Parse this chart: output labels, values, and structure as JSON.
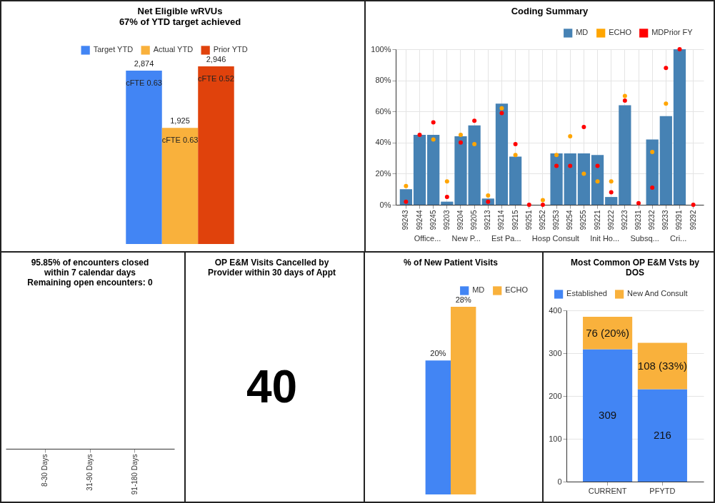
{
  "chart_data": [
    {
      "type": "bar",
      "title": "Net Eligible wRVUs",
      "subtitle": "67% of YTD target achieved",
      "categories": [
        null
      ],
      "series": [
        {
          "name": "Target YTD",
          "color": "#4285f4",
          "values": [
            2874
          ],
          "value_labels": [
            "2,874"
          ]
        },
        {
          "name": "Actual YTD",
          "color": "#f9b13c",
          "values": [
            1925
          ],
          "value_labels": [
            "1,925"
          ]
        },
        {
          "name": "Prior YTD",
          "color": "#e0420c",
          "values": [
            2946
          ],
          "value_labels": [
            "2,946"
          ]
        }
      ],
      "annotations": [
        "cFTE 0.63",
        "cFTE 0.63",
        "cFTE 0.52"
      ],
      "legend": "top",
      "tick_labels": false
    },
    {
      "type": "bar",
      "title": "Coding Summary",
      "categories": [
        "99243",
        "99244",
        "99245",
        "99203",
        "99204",
        "99205",
        "99213",
        "99214",
        "99215",
        "99251",
        "99252",
        "99253",
        "99254",
        "99255",
        "99221",
        "99222",
        "99223",
        "99231",
        "99232",
        "99233",
        "99291",
        "99292"
      ],
      "series": [
        {
          "name": "MD",
          "color": "#4682b4",
          "values": [
            10,
            45,
            45,
            2,
            44,
            51,
            4,
            65,
            31,
            0,
            0,
            33,
            33,
            33,
            32,
            5,
            64,
            0,
            42,
            57,
            100,
            0
          ]
        },
        {
          "name": "ECHO",
          "type": "scatter",
          "color": "#ffa500",
          "values": [
            12,
            null,
            42,
            15,
            45,
            39,
            6,
            62,
            32,
            null,
            3,
            32,
            44,
            20,
            15,
            15,
            70,
            null,
            34,
            65,
            null,
            null
          ]
        },
        {
          "name": "MDPrior FY",
          "type": "scatter",
          "color": "#ff0000",
          "values": [
            2,
            45,
            53,
            5,
            40,
            54,
            2,
            59,
            39,
            0,
            0,
            25,
            25,
            50,
            25,
            8,
            67,
            1,
            11,
            88,
            100,
            0
          ]
        }
      ],
      "ylim": [
        0,
        100
      ],
      "yticks": [
        {
          "value": 0,
          "label": "0%"
        },
        {
          "value": 20,
          "label": "20%"
        },
        {
          "value": 40,
          "label": "40%"
        },
        {
          "value": 60,
          "label": "60%"
        },
        {
          "value": 80,
          "label": "80%"
        },
        {
          "value": 100,
          "label": "100%"
        }
      ],
      "grid": true,
      "legend": "top right",
      "marker": "circle",
      "annotations": [
        "Office...",
        "New P...",
        "Est Pa...",
        "Hosp Consult",
        "Init Ho...",
        "Subsq...",
        "Cri..."
      ]
    },
    {
      "type": "other",
      "title": "95.85% of encounters closed within 7 calendar days",
      "subtitle": "Remaining open encounters: 0",
      "categories": [
        "8-30 Days",
        "31-90 Days",
        "91-180 Days"
      ]
    },
    {
      "type": "other",
      "title": "OP E&M Visits Cancelled by Provider within 30 days of Appt",
      "annotations": [
        "40"
      ]
    },
    {
      "type": "bar",
      "title": "% of New Patient Visits",
      "categories": [
        null
      ],
      "series": [
        {
          "name": "MD",
          "color": "#4285f4",
          "values": [
            20
          ],
          "value_labels": [
            "20%"
          ]
        },
        {
          "name": "ECHO",
          "color": "#f9b13c",
          "values": [
            28
          ],
          "value_labels": [
            "28%"
          ]
        }
      ],
      "legend": "top right",
      "tick_labels": false
    },
    {
      "type": "bar",
      "title": "Most Common OP  E&M Vsts by DOS",
      "categories": [
        "CURRENT",
        "PFYTD"
      ],
      "stacked": true,
      "series": [
        {
          "name": "Established",
          "color": "#4285f4",
          "values": [
            309,
            216
          ],
          "value_labels": [
            "309",
            "216"
          ]
        },
        {
          "name": "New And Consult",
          "color": "#f9b13c",
          "values": [
            76,
            108
          ],
          "value_labels": [
            "76 (20%)",
            "108 (33%)"
          ]
        }
      ],
      "ylim": [
        0,
        400
      ],
      "yticks": [
        0,
        100,
        200,
        300,
        400
      ],
      "grid": "y",
      "legend": "top"
    }
  ]
}
